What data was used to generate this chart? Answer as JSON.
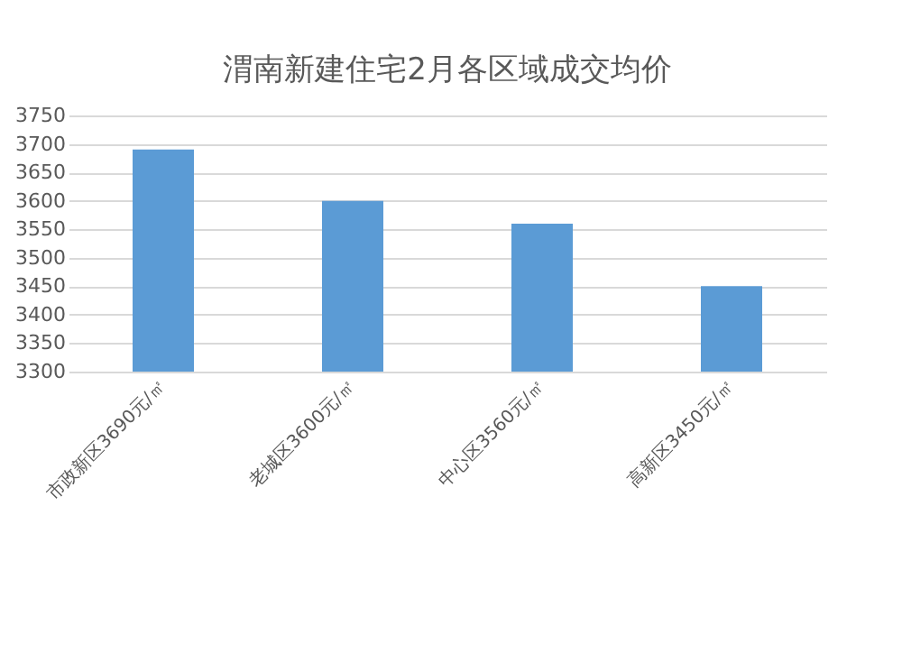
{
  "chart_data": {
    "type": "bar",
    "title": "渭南新建住宅2月各区域成交均价",
    "categories": [
      "市政新区3690元/㎡",
      "老城区3600元/㎡",
      "中心区3560元/㎡",
      "高新区3450元/㎡"
    ],
    "values": [
      3690,
      3600,
      3560,
      3450
    ],
    "color": "#5b9bd5",
    "ylim": [
      3300,
      3750
    ],
    "yticks": [
      3300,
      3350,
      3400,
      3450,
      3500,
      3550,
      3600,
      3650,
      3700,
      3750
    ],
    "grid": "y"
  }
}
